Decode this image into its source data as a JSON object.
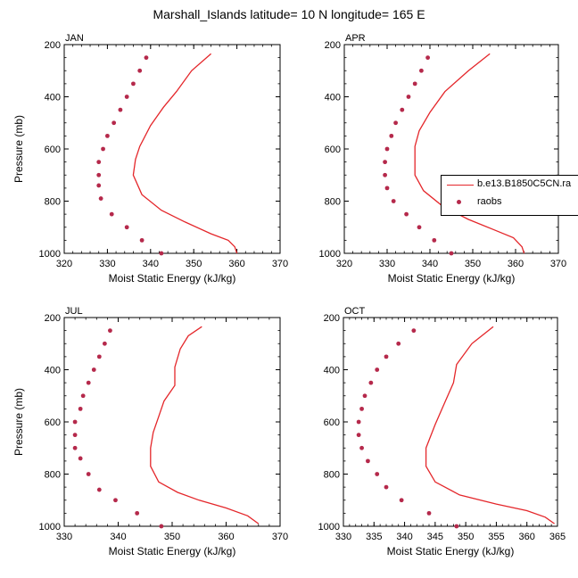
{
  "title": "Marshall_Islands  latitude= 10 N longitude= 165 E",
  "colors": {
    "model_line": "#e4262a",
    "obs_marker": "#b5294b",
    "axis": "#000000"
  },
  "legend": {
    "model_label": "b.e13.B1850C5CN.ra",
    "obs_label": "raobs"
  },
  "chart_data": [
    {
      "type": "line",
      "panel": "JAN",
      "xlabel": "Moist Static Energy (kJ/kg)",
      "ylabel": "Pressure (mb)",
      "xlim": [
        320,
        370
      ],
      "ylim": [
        200,
        1000
      ],
      "y_inverted": true,
      "xticks": [
        320,
        330,
        340,
        350,
        360,
        370
      ],
      "yticks": [
        200,
        400,
        600,
        800,
        1000
      ],
      "series": [
        {
          "name": "b.e13.B1850C5CN.ra",
          "kind": "line",
          "points": [
            [
              354,
              235
            ],
            [
              349.5,
              300
            ],
            [
              346,
              380
            ],
            [
              343,
              440
            ],
            [
              340,
              510
            ],
            [
              337.5,
              590
            ],
            [
              336.5,
              640
            ],
            [
              336,
              700
            ],
            [
              338,
              775
            ],
            [
              342.5,
              835
            ],
            [
              348,
              880
            ],
            [
              354,
              925
            ],
            [
              358,
              950
            ],
            [
              359.5,
              975
            ],
            [
              360,
              1000
            ]
          ]
        },
        {
          "name": "raobs",
          "kind": "scatter",
          "points": [
            [
              342.5,
              1000
            ],
            [
              338,
              950
            ],
            [
              334.5,
              900
            ],
            [
              331,
              850
            ],
            [
              328.5,
              790
            ],
            [
              328,
              740
            ],
            [
              328,
              700
            ],
            [
              328,
              650
            ],
            [
              329,
              600
            ],
            [
              330,
              550
            ],
            [
              331.5,
              500
            ],
            [
              333,
              450
            ],
            [
              334.5,
              400
            ],
            [
              336,
              350
            ],
            [
              337.5,
              300
            ],
            [
              339,
              250
            ]
          ]
        }
      ]
    },
    {
      "type": "line",
      "panel": "APR",
      "xlabel": "Moist Static Energy (kJ/kg)",
      "ylabel": "",
      "xlim": [
        320,
        370
      ],
      "ylim": [
        200,
        1000
      ],
      "y_inverted": true,
      "xticks": [
        320,
        330,
        340,
        350,
        360,
        370
      ],
      "yticks": [
        200,
        400,
        600,
        800,
        1000
      ],
      "series": [
        {
          "name": "b.e13.B1850C5CN.ra",
          "kind": "line",
          "points": [
            [
              354,
              235
            ],
            [
              349,
              300
            ],
            [
              343.5,
              380
            ],
            [
              340,
              460
            ],
            [
              337.5,
              530
            ],
            [
              336.5,
              590
            ],
            [
              336.5,
              640
            ],
            [
              336.5,
              700
            ],
            [
              338.5,
              760
            ],
            [
              343,
              820
            ],
            [
              349,
              870
            ],
            [
              355,
              910
            ],
            [
              359.5,
              940
            ],
            [
              361.5,
              975
            ],
            [
              362,
              1000
            ]
          ]
        },
        {
          "name": "raobs",
          "kind": "scatter",
          "points": [
            [
              345,
              1000
            ],
            [
              341,
              950
            ],
            [
              337.5,
              900
            ],
            [
              334.5,
              850
            ],
            [
              331.5,
              800
            ],
            [
              330,
              750
            ],
            [
              329.5,
              700
            ],
            [
              329.5,
              650
            ],
            [
              330,
              600
            ],
            [
              331,
              550
            ],
            [
              332,
              500
            ],
            [
              333.5,
              450
            ],
            [
              335,
              400
            ],
            [
              336.5,
              350
            ],
            [
              338,
              300
            ],
            [
              339.5,
              250
            ]
          ]
        }
      ]
    },
    {
      "type": "line",
      "panel": "JUL",
      "xlabel": "Moist Static Energy (kJ/kg)",
      "ylabel": "Pressure (mb)",
      "xlim": [
        330,
        370
      ],
      "ylim": [
        200,
        1000
      ],
      "y_inverted": true,
      "xticks": [
        330,
        340,
        350,
        360,
        370
      ],
      "yticks": [
        200,
        400,
        600,
        800,
        1000
      ],
      "series": [
        {
          "name": "b.e13.B1850C5CN.ra",
          "kind": "line",
          "points": [
            [
              355.5,
              235
            ],
            [
              353,
              270
            ],
            [
              351.5,
              320
            ],
            [
              350.5,
              390
            ],
            [
              350.5,
              460
            ],
            [
              348.5,
              520
            ],
            [
              347.5,
              580
            ],
            [
              346.5,
              640
            ],
            [
              346,
              700
            ],
            [
              346,
              770
            ],
            [
              347.5,
              830
            ],
            [
              351,
              870
            ],
            [
              355,
              900
            ],
            [
              360,
              930
            ],
            [
              364,
              960
            ],
            [
              366,
              990
            ]
          ]
        },
        {
          "name": "raobs",
          "kind": "scatter",
          "points": [
            [
              348,
              1000
            ],
            [
              343.5,
              950
            ],
            [
              339.5,
              900
            ],
            [
              336.5,
              860
            ],
            [
              334.5,
              800
            ],
            [
              333,
              740
            ],
            [
              332,
              700
            ],
            [
              332,
              650
            ],
            [
              332,
              600
            ],
            [
              333,
              550
            ],
            [
              333.5,
              500
            ],
            [
              334.5,
              450
            ],
            [
              335.5,
              400
            ],
            [
              336.5,
              350
            ],
            [
              337.5,
              300
            ],
            [
              338.5,
              250
            ]
          ]
        }
      ]
    },
    {
      "type": "line",
      "panel": "OCT",
      "xlabel": "Moist Static Energy (kJ/kg)",
      "ylabel": "",
      "xlim": [
        330,
        365
      ],
      "ylim": [
        200,
        1000
      ],
      "y_inverted": true,
      "xticks": [
        330,
        335,
        340,
        345,
        350,
        355,
        360,
        365
      ],
      "yticks": [
        200,
        400,
        600,
        800,
        1000
      ],
      "series": [
        {
          "name": "b.e13.B1850C5CN.ra",
          "kind": "line",
          "points": [
            [
              354.5,
              235
            ],
            [
              351,
              300
            ],
            [
              348.5,
              380
            ],
            [
              348,
              450
            ],
            [
              346.5,
              530
            ],
            [
              345,
              610
            ],
            [
              343.5,
              700
            ],
            [
              343.5,
              770
            ],
            [
              345,
              830
            ],
            [
              349,
              880
            ],
            [
              355,
              915
            ],
            [
              360,
              940
            ],
            [
              363,
              965
            ],
            [
              364.5,
              990
            ]
          ]
        },
        {
          "name": "raobs",
          "kind": "scatter",
          "points": [
            [
              348.5,
              1000
            ],
            [
              344,
              950
            ],
            [
              339.5,
              900
            ],
            [
              337,
              850
            ],
            [
              335.5,
              800
            ],
            [
              334,
              750
            ],
            [
              333,
              700
            ],
            [
              332.5,
              650
            ],
            [
              332.5,
              600
            ],
            [
              333,
              550
            ],
            [
              333.5,
              500
            ],
            [
              334.5,
              450
            ],
            [
              335.5,
              400
            ],
            [
              337,
              350
            ],
            [
              339,
              300
            ],
            [
              341.5,
              250
            ]
          ]
        }
      ]
    }
  ]
}
